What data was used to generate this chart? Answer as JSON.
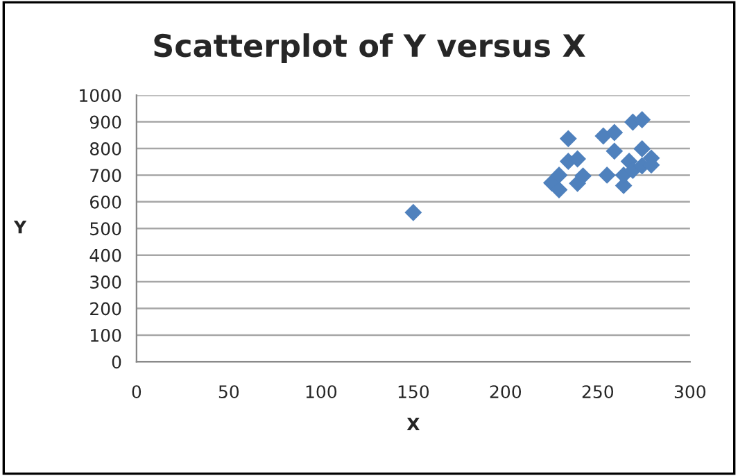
{
  "chart_data": {
    "type": "scatter",
    "title": "Scatterplot of Y versus X",
    "xlabel": "X",
    "ylabel": "Y",
    "x": [
      150,
      225,
      229,
      229,
      234,
      234,
      239,
      239,
      242,
      253,
      259,
      259,
      255,
      264,
      264,
      267,
      269,
      269,
      274,
      274,
      274,
      279,
      279
    ],
    "values": [
      560,
      671,
      645,
      700,
      837,
      752,
      761,
      669,
      697,
      847,
      860,
      790,
      700,
      661,
      700,
      752,
      718,
      899,
      908,
      799,
      735,
      764,
      738
    ],
    "color": "#4f81bd",
    "marker": "diamond",
    "xlim": [
      0,
      300
    ],
    "xticks": [
      0,
      50,
      100,
      150,
      200,
      250,
      300
    ],
    "ylim": [
      0,
      1000
    ],
    "yticks": [
      0,
      100,
      200,
      300,
      400,
      500,
      600,
      700,
      800,
      900,
      1000
    ],
    "grid": "y"
  }
}
